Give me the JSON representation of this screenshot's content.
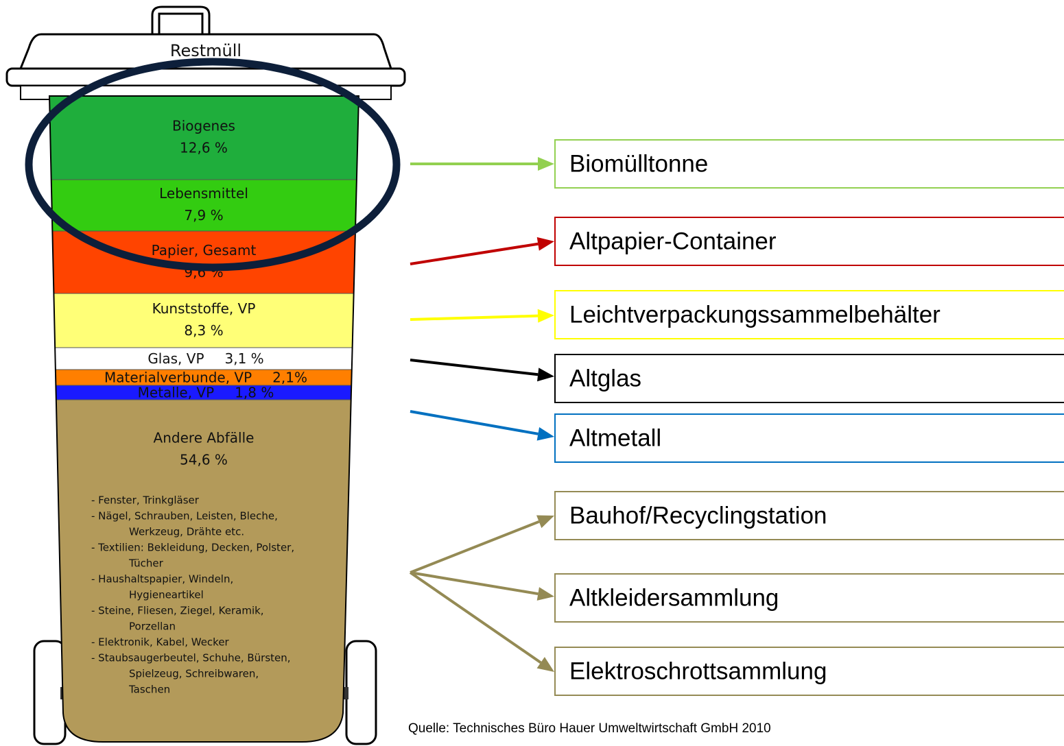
{
  "bin": {
    "title": "Restmüll",
    "layers": [
      {
        "label": "Biogenes",
        "share": "12,6 %"
      },
      {
        "label": "Lebensmittel",
        "share": "7,9 %"
      },
      {
        "label": "Papier, Gesamt",
        "share": "9,6 %"
      },
      {
        "label": "Kunststoffe, VP",
        "share": "8,3 %"
      },
      {
        "label": "Glas, VP",
        "share": "3,1 %"
      },
      {
        "label": "Materialverbunde, VP",
        "share": "2,1%"
      },
      {
        "label": "Metalle, VP",
        "share": "1,8 %"
      },
      {
        "label": "Andere Abfälle",
        "share": "54,6 %"
      }
    ],
    "details": [
      [
        "- Fenster, Trinkgläser"
      ],
      [
        "- Nägel, Schrauben, Leisten, Bleche,",
        "Werkzeug, Drähte etc."
      ],
      [
        "- Textilien: Bekleidung, Decken, Polster,",
        "Tücher"
      ],
      [
        "- Haushaltspapier, Windeln,",
        "Hygieneartikel"
      ],
      [
        "- Steine, Fliesen, Ziegel, Keramik,",
        "Porzellan"
      ],
      [
        "- Elektronik, Kabel, Wecker"
      ],
      [
        "- Staubsaugerbeutel, Schuhe, Bürsten,",
        "Spielzeug, Schreibwaren,",
        "Taschen"
      ]
    ]
  },
  "destinations": [
    "Biomülltonne",
    "Altpapier-Container",
    "Leichtverpackungssammelbehälter",
    "Altglas",
    "Altmetall",
    "Bauhof/Recyclingstation",
    "Altkleidersammlung",
    "Elektroschrottsammlung"
  ],
  "source": "Quelle:  Technisches Büro Hauer Umweltwirtschaft GmbH 2010"
}
